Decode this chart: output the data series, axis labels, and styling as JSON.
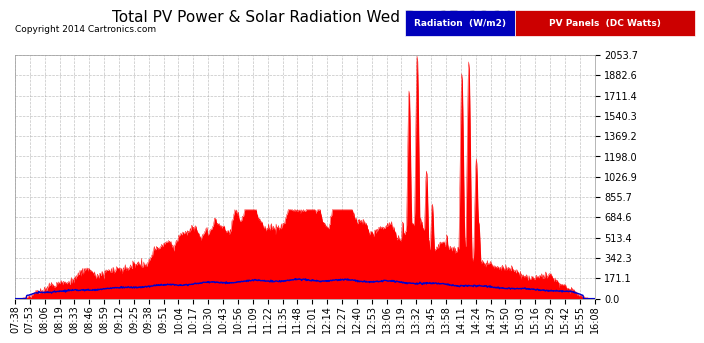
{
  "title": "Total PV Power & Solar Radiation Wed Dec 17  16:14",
  "copyright": "Copyright 2014 Cartronics.com",
  "yticks": [
    0.0,
    171.1,
    342.3,
    513.4,
    684.6,
    855.7,
    1026.9,
    1198.0,
    1369.2,
    1540.3,
    1711.4,
    1882.6,
    2053.7
  ],
  "ymax": 2053.7,
  "ymin": 0.0,
  "legend_radiation_label": "Radiation  (W/m2)",
  "legend_pv_label": "PV Panels  (DC Watts)",
  "legend_radiation_bg": "#0000bb",
  "legend_pv_bg": "#cc0000",
  "background_color": "#ffffff",
  "plot_bg": "#ffffff",
  "grid_color": "#aaaaaa",
  "radiation_color": "#0000cc",
  "pv_color": "#ff0000",
  "title_fontsize": 12,
  "axis_fontsize": 7,
  "xtick_labels": [
    "07:38",
    "07:53",
    "08:06",
    "08:19",
    "08:33",
    "08:46",
    "08:59",
    "09:12",
    "09:25",
    "09:38",
    "09:51",
    "10:04",
    "10:17",
    "10:30",
    "10:43",
    "10:56",
    "11:09",
    "11:22",
    "11:35",
    "11:48",
    "12:01",
    "12:14",
    "12:27",
    "12:40",
    "12:53",
    "13:06",
    "13:19",
    "13:32",
    "13:45",
    "13:58",
    "14:11",
    "14:24",
    "14:37",
    "14:50",
    "15:03",
    "15:16",
    "15:29",
    "15:42",
    "15:55",
    "16:08"
  ]
}
